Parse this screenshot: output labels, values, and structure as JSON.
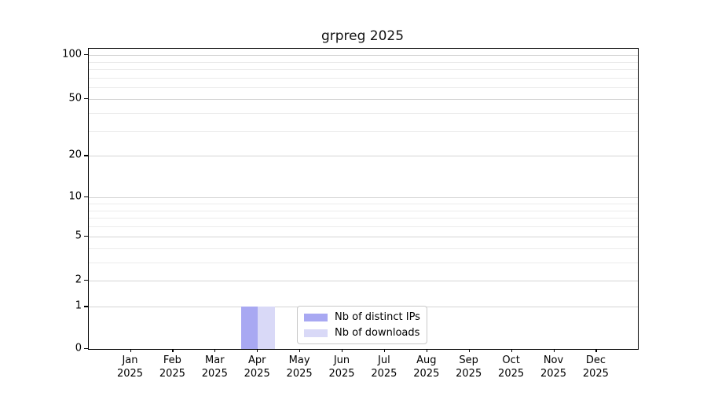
{
  "chart_data": {
    "type": "bar",
    "title": "grpreg 2025",
    "xlabel": "",
    "ylabel": "",
    "categories": [
      "Jan",
      "Feb",
      "Mar",
      "Apr",
      "May",
      "Jun",
      "Jul",
      "Aug",
      "Sep",
      "Oct",
      "Nov",
      "Dec"
    ],
    "x_year_line": "2025",
    "series": [
      {
        "name": "Nb of distinct IPs",
        "color": "#a8a8f2",
        "values": [
          0,
          0,
          0,
          1,
          0,
          0,
          0,
          0,
          0,
          0,
          0,
          0
        ]
      },
      {
        "name": "Nb of downloads",
        "color": "#d9d9f7",
        "values": [
          0,
          0,
          0,
          1,
          0,
          0,
          0,
          0,
          0,
          0,
          0,
          0
        ]
      }
    ],
    "y_axis": {
      "scale": "log1p",
      "major_ticks": [
        100,
        50,
        20,
        10,
        5,
        2,
        1,
        0
      ],
      "minor_ticks": [
        90,
        80,
        70,
        60,
        40,
        30,
        9,
        8,
        7,
        6,
        4,
        3
      ],
      "range": [
        0,
        111
      ]
    },
    "legend": {
      "position": "lower-center-inside",
      "entries": [
        "Nb of distinct IPs",
        "Nb of downloads"
      ]
    },
    "grid": "horizontal",
    "colors": {
      "major_grid": "#d4d4d4",
      "minor_grid": "#ebebeb",
      "spine": "#000000",
      "text": "#000000"
    }
  }
}
